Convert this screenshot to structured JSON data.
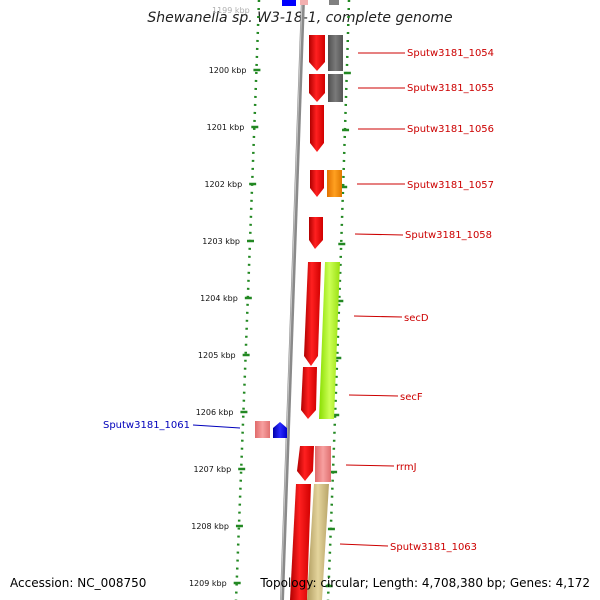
{
  "title": "Shewanella sp. W3-18-1, complete genome",
  "footer": {
    "accession": "Accession: NC_008750",
    "topology": "Topology: circular; Length: 4,708,380 bp; Genes: 4,172"
  },
  "ruler": {
    "top_clip_label": "1199 kbp",
    "ticks": [
      "1200 kbp",
      "1201 kbp",
      "1202 kbp",
      "1203 kbp",
      "1204 kbp",
      "1205 kbp",
      "1206 kbp",
      "1207 kbp",
      "1208 kbp",
      "1209 kbp"
    ]
  },
  "genes": [
    {
      "label": "Sputw3181_1054",
      "label_color": "#cc0000",
      "cds_color": "#ff0000",
      "feature_color": "#707070"
    },
    {
      "label": "Sputw3181_1055",
      "label_color": "#cc0000",
      "cds_color": "#ff0000",
      "feature_color": "#707070"
    },
    {
      "label": "Sputw3181_1056",
      "label_color": "#cc0000",
      "cds_color": "#ff0000",
      "feature_color": ""
    },
    {
      "label": "Sputw3181_1057",
      "label_color": "#cc0000",
      "cds_color": "#ff0000",
      "feature_color": "#ff8800"
    },
    {
      "label": "Sputw3181_1058",
      "label_color": "#cc0000",
      "cds_color": "#ff0000",
      "feature_color": ""
    },
    {
      "label": "secD",
      "label_color": "#cc0000",
      "cds_color": "#ff0000",
      "feature_color": "#99ee22"
    },
    {
      "label": "secF",
      "label_color": "#cc0000",
      "cds_color": "#ff0000",
      "feature_color": ""
    },
    {
      "label": "rrmJ",
      "label_color": "#cc0000",
      "cds_color": "#ff0000",
      "feature_color": "#f08080"
    },
    {
      "label": "Sputw3181_1063",
      "label_color": "#cc0000",
      "cds_color": "#ff0000",
      "feature_color": "#c8b478"
    },
    {
      "label": "Sputw3181_1061",
      "label_color": "#0000bb",
      "cds_color": "#0000ff",
      "feature_color": "#f08080"
    }
  ],
  "colors": {
    "tick": "#228822",
    "backbone": "#808080",
    "forward_cds": "#ff0000",
    "reverse_cds": "#0000ff"
  }
}
